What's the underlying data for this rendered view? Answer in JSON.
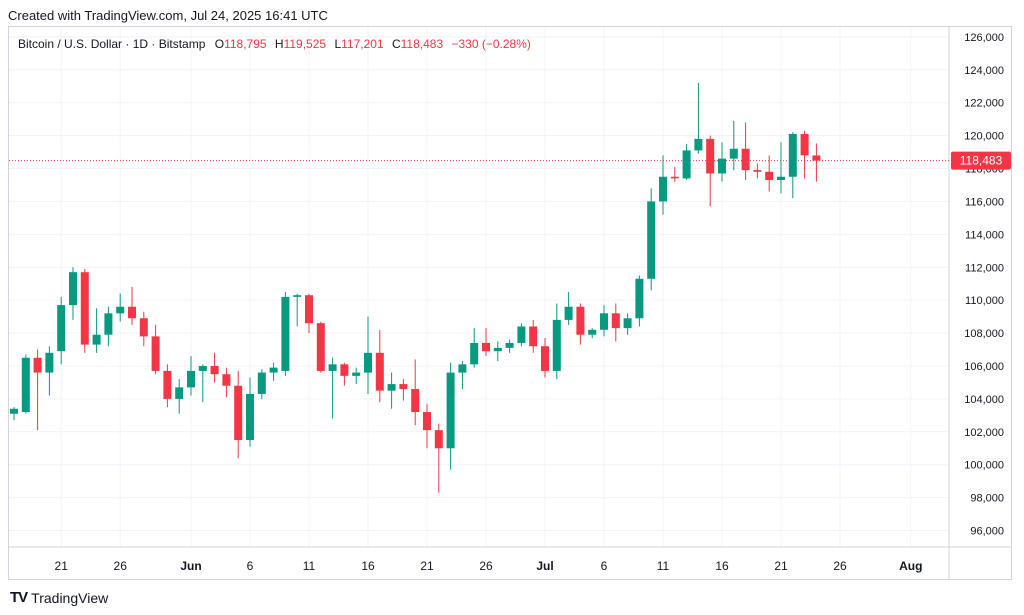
{
  "caption": "Created with TradingView.com, Jul 24, 2025 16:41 UTC",
  "legend": {
    "symbol": "Bitcoin / U.S. Dollar · 1D · Bitstamp",
    "o_label": "O",
    "o": "118,795",
    "h_label": "H",
    "h": "119,525",
    "l_label": "L",
    "l": "117,201",
    "c_label": "C",
    "c": "118,483",
    "change": "−330 (−0.28%)"
  },
  "price_label": "118,483",
  "footer": {
    "logo": "TV",
    "text": "TradingView"
  },
  "colors": {
    "up": "#089981",
    "down": "#f23645",
    "grid": "#f0f3fa",
    "last_line": "#f23645"
  },
  "chart_data": {
    "type": "candlestick",
    "ylim": [
      95000,
      126600
    ],
    "y_ticks": [
      96000,
      98000,
      100000,
      102000,
      104000,
      106000,
      108000,
      110000,
      112000,
      114000,
      116000,
      118000,
      120000,
      122000,
      124000,
      126000
    ],
    "y_tick_labels": [
      "96,000",
      "98,000",
      "100,000",
      "102,000",
      "104,000",
      "106,000",
      "108,000",
      "110,000",
      "112,000",
      "114,000",
      "116,000",
      "118,000",
      "120,000",
      "122,000",
      "124,000",
      "126,000"
    ],
    "x_ticks": [
      {
        "label": "21",
        "index": 4,
        "bold": false
      },
      {
        "label": "26",
        "index": 9,
        "bold": false
      },
      {
        "label": "Jun",
        "index": 15,
        "bold": true
      },
      {
        "label": "6",
        "index": 20,
        "bold": false
      },
      {
        "label": "11",
        "index": 25,
        "bold": false
      },
      {
        "label": "16",
        "index": 30,
        "bold": false
      },
      {
        "label": "21",
        "index": 35,
        "bold": false
      },
      {
        "label": "26",
        "index": 40,
        "bold": false
      },
      {
        "label": "Jul",
        "index": 45,
        "bold": true
      },
      {
        "label": "6",
        "index": 50,
        "bold": false
      },
      {
        "label": "11",
        "index": 55,
        "bold": false
      },
      {
        "label": "16",
        "index": 60,
        "bold": false
      },
      {
        "label": "21",
        "index": 65,
        "bold": false
      },
      {
        "label": "26",
        "index": 70,
        "bold": false
      },
      {
        "label": "Aug",
        "index": 76,
        "bold": true
      }
    ],
    "last_price": 118483,
    "candles": [
      {
        "date": "May 17",
        "o": 103100,
        "h": 103500,
        "l": 102700,
        "c": 103400
      },
      {
        "date": "May 18",
        "o": 103200,
        "h": 106700,
        "l": 103100,
        "c": 106500
      },
      {
        "date": "May 19",
        "o": 106500,
        "h": 107000,
        "l": 102100,
        "c": 105600
      },
      {
        "date": "May 20",
        "o": 105600,
        "h": 107200,
        "l": 104200,
        "c": 106800
      },
      {
        "date": "May 21",
        "o": 106900,
        "h": 110200,
        "l": 106100,
        "c": 109700
      },
      {
        "date": "May 22",
        "o": 109700,
        "h": 112000,
        "l": 108800,
        "c": 111700
      },
      {
        "date": "May 23",
        "o": 111700,
        "h": 111900,
        "l": 106800,
        "c": 107300
      },
      {
        "date": "May 24",
        "o": 107300,
        "h": 109500,
        "l": 106800,
        "c": 107900
      },
      {
        "date": "May 25",
        "o": 107900,
        "h": 109600,
        "l": 107200,
        "c": 109200
      },
      {
        "date": "May 26",
        "o": 109200,
        "h": 110400,
        "l": 108700,
        "c": 109600
      },
      {
        "date": "May 27",
        "o": 109600,
        "h": 110800,
        "l": 108500,
        "c": 108900
      },
      {
        "date": "May 28",
        "o": 108900,
        "h": 109300,
        "l": 107200,
        "c": 107800
      },
      {
        "date": "May 29",
        "o": 107800,
        "h": 108500,
        "l": 105500,
        "c": 105700
      },
      {
        "date": "May 30",
        "o": 105700,
        "h": 106100,
        "l": 103500,
        "c": 104000
      },
      {
        "date": "May 31",
        "o": 104000,
        "h": 105200,
        "l": 103100,
        "c": 104700
      },
      {
        "date": "Jun 1",
        "o": 104700,
        "h": 106600,
        "l": 104200,
        "c": 105700
      },
      {
        "date": "Jun 2",
        "o": 105700,
        "h": 106100,
        "l": 103800,
        "c": 106000
      },
      {
        "date": "Jun 3",
        "o": 106000,
        "h": 106800,
        "l": 105000,
        "c": 105500
      },
      {
        "date": "Jun 4",
        "o": 105500,
        "h": 105900,
        "l": 104100,
        "c": 104800
      },
      {
        "date": "Jun 5",
        "o": 104800,
        "h": 105700,
        "l": 100400,
        "c": 101500
      },
      {
        "date": "Jun 6",
        "o": 101500,
        "h": 105300,
        "l": 101100,
        "c": 104300
      },
      {
        "date": "Jun 7",
        "o": 104300,
        "h": 105800,
        "l": 104000,
        "c": 105600
      },
      {
        "date": "Jun 8",
        "o": 105600,
        "h": 106200,
        "l": 105100,
        "c": 105900
      },
      {
        "date": "Jun 9",
        "o": 105700,
        "h": 110500,
        "l": 105400,
        "c": 110200
      },
      {
        "date": "Jun 10",
        "o": 110200,
        "h": 110400,
        "l": 108400,
        "c": 110300
      },
      {
        "date": "Jun 11",
        "o": 110300,
        "h": 110400,
        "l": 108000,
        "c": 108600
      },
      {
        "date": "Jun 12",
        "o": 108600,
        "h": 108700,
        "l": 105600,
        "c": 105700
      },
      {
        "date": "Jun 13",
        "o": 105700,
        "h": 106500,
        "l": 102800,
        "c": 106100
      },
      {
        "date": "Jun 14",
        "o": 106100,
        "h": 106200,
        "l": 104800,
        "c": 105400
      },
      {
        "date": "Jun 15",
        "o": 105400,
        "h": 105900,
        "l": 104900,
        "c": 105600
      },
      {
        "date": "Jun 16",
        "o": 105600,
        "h": 109000,
        "l": 104300,
        "c": 106800
      },
      {
        "date": "Jun 17",
        "o": 106800,
        "h": 108200,
        "l": 103800,
        "c": 104500
      },
      {
        "date": "Jun 18",
        "o": 104500,
        "h": 105600,
        "l": 103400,
        "c": 104900
      },
      {
        "date": "Jun 19",
        "o": 104900,
        "h": 105200,
        "l": 103900,
        "c": 104600
      },
      {
        "date": "Jun 20",
        "o": 104600,
        "h": 106400,
        "l": 102400,
        "c": 103200
      },
      {
        "date": "Jun 21",
        "o": 103200,
        "h": 103700,
        "l": 101000,
        "c": 102100
      },
      {
        "date": "Jun 22",
        "o": 102100,
        "h": 102500,
        "l": 98300,
        "c": 101000
      },
      {
        "date": "Jun 23",
        "o": 101000,
        "h": 106200,
        "l": 99700,
        "c": 105600
      },
      {
        "date": "Jun 24",
        "o": 105600,
        "h": 106300,
        "l": 104600,
        "c": 106100
      },
      {
        "date": "Jun 25",
        "o": 106100,
        "h": 108300,
        "l": 105900,
        "c": 107400
      },
      {
        "date": "Jun 26",
        "o": 107400,
        "h": 108300,
        "l": 106600,
        "c": 106900
      },
      {
        "date": "Jun 27",
        "o": 106900,
        "h": 107500,
        "l": 106300,
        "c": 107100
      },
      {
        "date": "Jun 28",
        "o": 107100,
        "h": 107600,
        "l": 106800,
        "c": 107400
      },
      {
        "date": "Jun 29",
        "o": 107400,
        "h": 108600,
        "l": 107200,
        "c": 108400
      },
      {
        "date": "Jun 30",
        "o": 108400,
        "h": 108800,
        "l": 106800,
        "c": 107200
      },
      {
        "date": "Jul 1",
        "o": 107200,
        "h": 107700,
        "l": 105300,
        "c": 105700
      },
      {
        "date": "Jul 2",
        "o": 105700,
        "h": 109800,
        "l": 105200,
        "c": 108800
      },
      {
        "date": "Jul 3",
        "o": 108800,
        "h": 110500,
        "l": 108500,
        "c": 109600
      },
      {
        "date": "Jul 4",
        "o": 109600,
        "h": 109800,
        "l": 107300,
        "c": 107900
      },
      {
        "date": "Jul 5",
        "o": 107900,
        "h": 108300,
        "l": 107700,
        "c": 108200
      },
      {
        "date": "Jul 6",
        "o": 108200,
        "h": 109700,
        "l": 107800,
        "c": 109200
      },
      {
        "date": "Jul 7",
        "o": 109200,
        "h": 109800,
        "l": 107500,
        "c": 108300
      },
      {
        "date": "Jul 8",
        "o": 108300,
        "h": 109200,
        "l": 107900,
        "c": 108900
      },
      {
        "date": "Jul 9",
        "o": 108900,
        "h": 111500,
        "l": 108400,
        "c": 111300
      },
      {
        "date": "Jul 10",
        "o": 111300,
        "h": 116800,
        "l": 110600,
        "c": 116000
      },
      {
        "date": "Jul 11",
        "o": 116000,
        "h": 118800,
        "l": 115200,
        "c": 117500
      },
      {
        "date": "Jul 12",
        "o": 117500,
        "h": 118100,
        "l": 117200,
        "c": 117400
      },
      {
        "date": "Jul 13",
        "o": 117400,
        "h": 119500,
        "l": 117300,
        "c": 119100
      },
      {
        "date": "Jul 14",
        "o": 119100,
        "h": 123200,
        "l": 118900,
        "c": 119800
      },
      {
        "date": "Jul 15",
        "o": 119800,
        "h": 120000,
        "l": 115700,
        "c": 117700
      },
      {
        "date": "Jul 16",
        "o": 117700,
        "h": 119600,
        "l": 117200,
        "c": 118600
      },
      {
        "date": "Jul 17",
        "o": 118600,
        "h": 120900,
        "l": 117900,
        "c": 119200
      },
      {
        "date": "Jul 18",
        "o": 119200,
        "h": 120800,
        "l": 117300,
        "c": 117900
      },
      {
        "date": "Jul 19",
        "o": 117900,
        "h": 118300,
        "l": 117400,
        "c": 117800
      },
      {
        "date": "Jul 20",
        "o": 117800,
        "h": 118800,
        "l": 116600,
        "c": 117300
      },
      {
        "date": "Jul 21",
        "o": 117300,
        "h": 119600,
        "l": 116500,
        "c": 117500
      },
      {
        "date": "Jul 22",
        "o": 117500,
        "h": 120200,
        "l": 116200,
        "c": 120100
      },
      {
        "date": "Jul 23",
        "o": 120100,
        "h": 120300,
        "l": 117400,
        "c": 118800
      },
      {
        "date": "Jul 24",
        "o": 118795,
        "h": 119525,
        "l": 117201,
        "c": 118483
      }
    ]
  }
}
